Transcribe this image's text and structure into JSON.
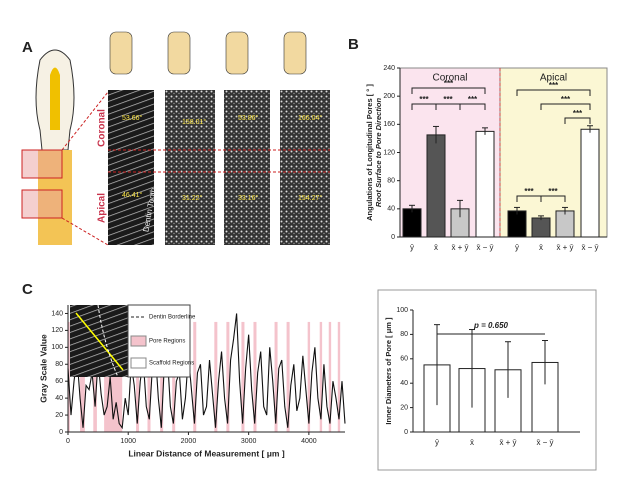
{
  "panel_a": {
    "label": "A",
    "coronal": "Coronal",
    "apical": "Apical",
    "tissue": "Dentin Tooth",
    "angles": [
      "53.66°",
      "158.01°",
      "53.86°",
      "166.04°",
      "46.41°",
      "31.22°",
      "33.16°",
      "154.27°"
    ]
  },
  "chart_data": [
    {
      "type": "bar",
      "panel": "B",
      "ylabel": "Angulations of Longitudinal Pores [ ° ]",
      "ylabel2": "Root Surface to Pore Direction",
      "groups": [
        "Coronal",
        "Apical"
      ],
      "categories": [
        "ȳ",
        "x̄",
        "x̄ + ȳ",
        "x̄ − ȳ",
        "ȳ",
        "x̄",
        "x̄ + ȳ",
        "x̄ − ȳ"
      ],
      "values": [
        40,
        145,
        40,
        150,
        37,
        27,
        37,
        153
      ],
      "errors": [
        5,
        12,
        12,
        5,
        5,
        3,
        5,
        5
      ],
      "colors": [
        "#000000",
        "#555555",
        "#c8c8c8",
        "#ffffff",
        "#000000",
        "#555555",
        "#c8c8c8",
        "#ffffff"
      ],
      "group_colors": [
        "#fbe4ee",
        "#fbf7d4"
      ],
      "ylim": [
        0,
        240
      ],
      "yticks": [
        0,
        40,
        80,
        120,
        160,
        200,
        240
      ],
      "significance": [
        "***",
        "***",
        "***",
        "***",
        "***",
        "***",
        "***",
        "***",
        "***"
      ]
    },
    {
      "type": "line",
      "panel": "C",
      "xlabel": "Linear Distance of Measurement [ μm ]",
      "ylabel": "Gray Scale Value",
      "legend": [
        "Dentin Borderline",
        "Pore Regions",
        "Scaffold Regions"
      ],
      "xlim": [
        0,
        4600
      ],
      "xticks": [
        0,
        1000,
        2000,
        3000,
        4000
      ],
      "ylim": [
        0,
        150
      ],
      "yticks": [
        0,
        20,
        40,
        60,
        80,
        100,
        120,
        140
      ],
      "band_top": 130,
      "band_color": "#f4c3cc",
      "pore_regions": [
        [
          0,
          30
        ],
        [
          200,
          280
        ],
        [
          420,
          480
        ],
        [
          600,
          900
        ],
        [
          1130,
          1180
        ],
        [
          1320,
          1370
        ],
        [
          1530,
          1580
        ],
        [
          1730,
          1780
        ],
        [
          2080,
          2130
        ],
        [
          2430,
          2480
        ],
        [
          2630,
          2680
        ],
        [
          2880,
          2930
        ],
        [
          3080,
          3130
        ],
        [
          3430,
          3480
        ],
        [
          3630,
          3680
        ],
        [
          3980,
          4020
        ],
        [
          4180,
          4220
        ],
        [
          4330,
          4370
        ],
        [
          4480,
          4520
        ]
      ],
      "series": [
        {
          "name": "Scaffold Regions",
          "color": "#111111",
          "x": [
            0,
            50,
            100,
            150,
            200,
            250,
            300,
            350,
            400,
            450,
            500,
            550,
            600,
            650,
            700,
            750,
            800,
            850,
            900,
            950,
            1000,
            1050,
            1100,
            1150,
            1200,
            1250,
            1300,
            1350,
            1400,
            1450,
            1500,
            1550,
            1600,
            1650,
            1700,
            1750,
            1800,
            1850,
            1900,
            1950,
            2000,
            2050,
            2100,
            2150,
            2200,
            2250,
            2300,
            2350,
            2400,
            2450,
            2500,
            2550,
            2600,
            2650,
            2700,
            2750,
            2800,
            2850,
            2900,
            2950,
            3000,
            3050,
            3100,
            3150,
            3200,
            3250,
            3300,
            3350,
            3400,
            3450,
            3500,
            3550,
            3600,
            3650,
            3700,
            3750,
            3800,
            3850,
            3900,
            3950,
            4000,
            4050,
            4100,
            4150,
            4200,
            4250,
            4300,
            4350,
            4400,
            4450,
            4500,
            4550,
            4600
          ],
          "values": [
            75,
            20,
            60,
            88,
            40,
            5,
            55,
            50,
            70,
            30,
            85,
            45,
            20,
            30,
            65,
            15,
            35,
            10,
            5,
            40,
            20,
            80,
            55,
            10,
            60,
            85,
            30,
            15,
            75,
            95,
            40,
            5,
            80,
            90,
            30,
            10,
            60,
            70,
            15,
            40,
            90,
            50,
            10,
            70,
            80,
            20,
            30,
            85,
            45,
            5,
            60,
            95,
            40,
            10,
            85,
            110,
            140,
            60,
            10,
            75,
            115,
            50,
            10,
            70,
            95,
            30,
            20,
            100,
            60,
            10,
            75,
            85,
            30,
            5,
            55,
            80,
            25,
            40,
            90,
            50,
            10,
            70,
            100,
            40,
            15,
            80,
            30,
            10,
            60,
            40,
            15,
            60,
            10
          ]
        }
      ]
    },
    {
      "type": "bar",
      "panel": "C2",
      "ylabel": "Inner Diameters of Pore [ μm ]",
      "annotation": "p = 0.650",
      "categories": [
        "ȳ",
        "x̄",
        "x̄ + ȳ",
        "x̄ − ȳ"
      ],
      "values": [
        55,
        52,
        51,
        57
      ],
      "errors": [
        33,
        32,
        23,
        18
      ],
      "color": "#ffffff",
      "ylim": [
        0,
        100
      ],
      "yticks": [
        0,
        20,
        40,
        60,
        80,
        100
      ]
    }
  ]
}
